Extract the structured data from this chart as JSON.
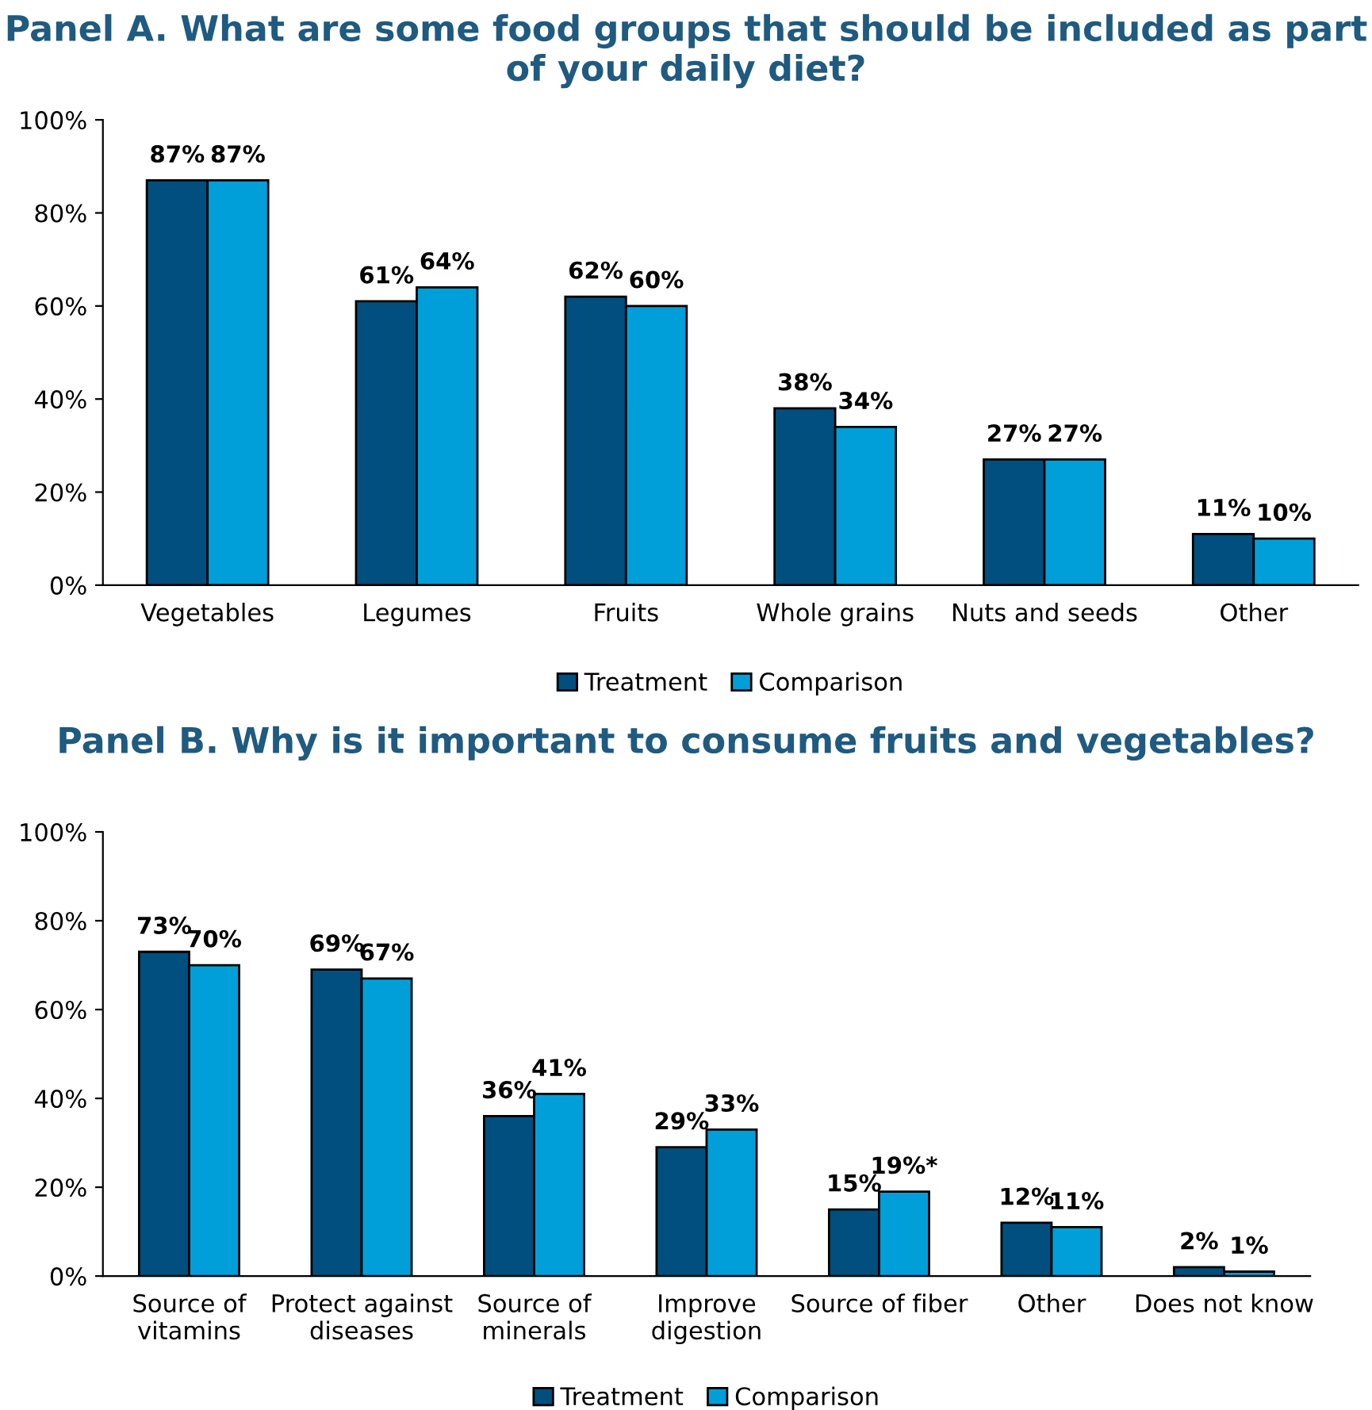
{
  "chart_data": [
    {
      "type": "bar",
      "title": "Panel A. What are some food groups that should be included as part of your daily diet?",
      "categories": [
        "Vegetables",
        "Legumes",
        "Fruits",
        "Whole grains",
        "Nuts and seeds",
        "Other"
      ],
      "series": [
        {
          "name": "Treatment",
          "color": "#004f7e",
          "values": [
            87,
            61,
            62,
            38,
            27,
            11
          ],
          "value_labels": [
            "87%",
            "61%",
            "62%",
            "38%",
            "27%",
            "11%"
          ]
        },
        {
          "name": "Comparison",
          "color": "#009fd9",
          "values": [
            87,
            64,
            60,
            34,
            27,
            10
          ],
          "value_labels": [
            "87%",
            "64%",
            "60%",
            "34%",
            "27%",
            "10%"
          ]
        }
      ],
      "ylim": [
        0,
        100
      ],
      "yticks": [
        {
          "value": 0,
          "label": "0%"
        },
        {
          "value": 20,
          "label": "20%"
        },
        {
          "value": 40,
          "label": "40%"
        },
        {
          "value": 60,
          "label": "60%"
        },
        {
          "value": 80,
          "label": "80%"
        },
        {
          "value": 100,
          "label": "100%"
        }
      ],
      "grid": false,
      "legend": "bottom"
    },
    {
      "type": "bar",
      "title": "Panel B. Why is it important to consume fruits and vegetables?",
      "categories": [
        "Source of\nvitamins",
        "Protect against\ndiseases",
        "Source of\nminerals",
        "Improve\ndigestion",
        "Source of fiber",
        "Other",
        "Does not know"
      ],
      "series": [
        {
          "name": "Treatment",
          "color": "#004f7e",
          "values": [
            73,
            69,
            36,
            29,
            15,
            12,
            2
          ],
          "value_labels": [
            "73%",
            "69%",
            "36%",
            "29%",
            "15%",
            "12%",
            "2%"
          ]
        },
        {
          "name": "Comparison",
          "color": "#009fd9",
          "values": [
            70,
            67,
            41,
            33,
            19,
            11,
            1
          ],
          "value_labels": [
            "70%",
            "67%",
            "41%",
            "33%",
            "19%*",
            "11%",
            "1%"
          ]
        }
      ],
      "ylim": [
        0,
        100
      ],
      "yticks": [
        {
          "value": 0,
          "label": "0%"
        },
        {
          "value": 20,
          "label": "20%"
        },
        {
          "value": 40,
          "label": "40%"
        },
        {
          "value": 60,
          "label": "60%"
        },
        {
          "value": 80,
          "label": "80%"
        },
        {
          "value": 100,
          "label": "100%"
        }
      ],
      "grid": false,
      "legend": "bottom"
    }
  ]
}
